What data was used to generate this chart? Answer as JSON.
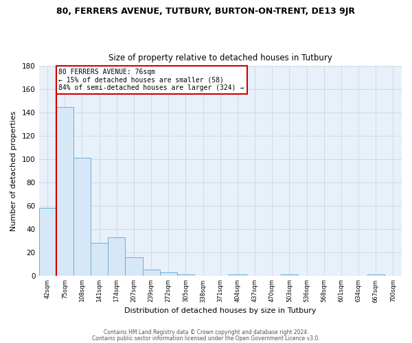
{
  "title1": "80, FERRERS AVENUE, TUTBURY, BURTON-ON-TRENT, DE13 9JR",
  "title2": "Size of property relative to detached houses in Tutbury",
  "xlabel": "Distribution of detached houses by size in Tutbury",
  "ylabel": "Number of detached properties",
  "bar_labels": [
    "42sqm",
    "75sqm",
    "108sqm",
    "141sqm",
    "174sqm",
    "207sqm",
    "239sqm",
    "272sqm",
    "305sqm",
    "338sqm",
    "371sqm",
    "404sqm",
    "437sqm",
    "470sqm",
    "503sqm",
    "536sqm",
    "568sqm",
    "601sqm",
    "634sqm",
    "667sqm",
    "700sqm"
  ],
  "bar_values": [
    58,
    145,
    101,
    28,
    33,
    16,
    5,
    3,
    1,
    0,
    0,
    1,
    0,
    0,
    1,
    0,
    0,
    0,
    0,
    1,
    0
  ],
  "bar_color": "#d6e8f7",
  "bar_edgecolor": "#6aaed6",
  "vline_color": "#cc0000",
  "annotation_text": "80 FERRERS AVENUE: 76sqm\n← 15% of detached houses are smaller (58)\n84% of semi-detached houses are larger (324) →",
  "annotation_box_edgecolor": "#cc0000",
  "ylim": [
    0,
    180
  ],
  "yticks": [
    0,
    20,
    40,
    60,
    80,
    100,
    120,
    140,
    160,
    180
  ],
  "footer1": "Contains HM Land Registry data © Crown copyright and database right 2024.",
  "footer2": "Contains public sector information licensed under the Open Government Licence v3.0.",
  "bg_color": "#ffffff",
  "plot_bg_color": "#e8f0fa"
}
